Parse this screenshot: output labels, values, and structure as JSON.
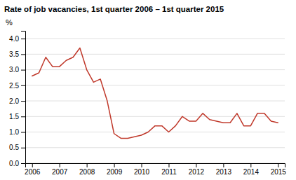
{
  "chart_data": {
    "type": "line",
    "title": "Rate of job vacancies, 1st quarter 2006 – 1st quarter 2015",
    "ylabel": "%",
    "color": "#c0392b",
    "x": [
      2006.0,
      2006.25,
      2006.5,
      2006.75,
      2007.0,
      2007.25,
      2007.5,
      2007.75,
      2008.0,
      2008.25,
      2008.5,
      2008.75,
      2009.0,
      2009.25,
      2009.5,
      2009.75,
      2010.0,
      2010.25,
      2010.5,
      2010.75,
      2011.0,
      2011.25,
      2011.5,
      2011.75,
      2012.0,
      2012.25,
      2012.5,
      2012.75,
      2013.0,
      2013.25,
      2013.5,
      2013.75,
      2014.0,
      2014.25,
      2014.5,
      2014.75,
      2015.0
    ],
    "values": [
      2.8,
      2.9,
      3.4,
      3.1,
      3.1,
      3.3,
      3.4,
      3.7,
      3.0,
      2.6,
      2.7,
      2.0,
      0.95,
      0.8,
      0.8,
      0.85,
      0.9,
      1.0,
      1.2,
      1.2,
      1.0,
      1.2,
      1.5,
      1.35,
      1.35,
      1.6,
      1.4,
      1.35,
      1.3,
      1.3,
      1.6,
      1.2,
      1.2,
      1.6,
      1.6,
      1.35,
      1.3
    ],
    "xlim": [
      2005.75,
      2015.25
    ],
    "xticks": [
      2006,
      2007,
      2008,
      2009,
      2010,
      2011,
      2012,
      2013,
      2014,
      2015
    ],
    "ylim": [
      0.0,
      4.25
    ],
    "yticks": [
      {
        "value": 0.0,
        "label": "0.0"
      },
      0.5,
      {
        "value": 1.0,
        "label": "1.0"
      },
      1.5,
      {
        "value": 2.0,
        "label": "2.0"
      },
      2.5,
      {
        "value": 3.0,
        "label": "3.0"
      },
      3.5,
      {
        "value": 4.0,
        "label": "4.0"
      }
    ],
    "grid": "y"
  }
}
